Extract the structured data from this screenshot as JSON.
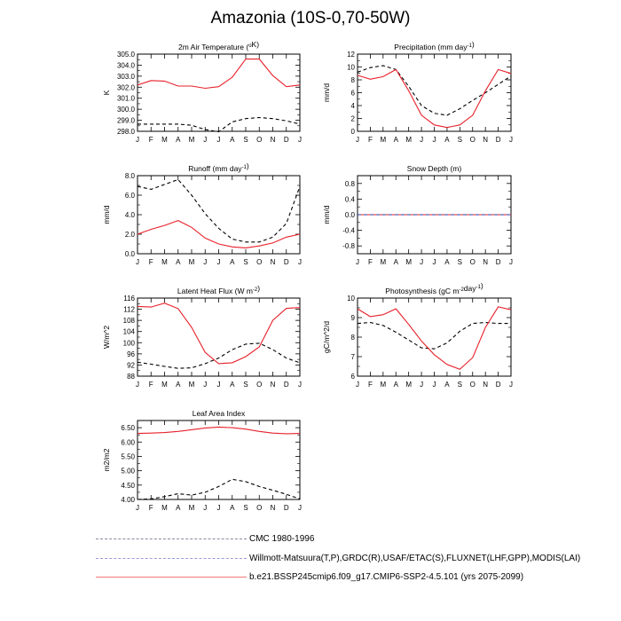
{
  "title": "Amazonia (10S-0,70-50W)",
  "months": [
    "J",
    "F",
    "M",
    "A",
    "M",
    "J",
    "J",
    "A",
    "S",
    "O",
    "N",
    "D",
    "J"
  ],
  "legend": [
    {
      "label": "CMC 1980-1996",
      "style": "dashed",
      "color": "#8a8aa0"
    },
    {
      "label": "Willmott-Matsuura(T,P),GRDC(R),USAF/ETAC(S),FLUXNET(LHF,GPP),MODIS(LAI)",
      "style": "dashed",
      "color": "#9a9ad6"
    },
    {
      "label": "b.e21.BSSP245cmip6.f09_g17.CMIP6-SSP2-4.5.101 (yrs 2075-2099)",
      "style": "solid",
      "color": "#f07878"
    }
  ],
  "chart_data": [
    {
      "type": "line",
      "title": "2m Air Temperature (°K)",
      "title_parts": [
        "2m Air Temperature (",
        "o",
        "K)"
      ],
      "ylabel": "K",
      "ylim": [
        298.0,
        305.0
      ],
      "yticks": [
        298.0,
        299.0,
        300.0,
        301.0,
        302.0,
        303.0,
        304.0,
        305.0
      ],
      "ytick_labels": [
        "298.0",
        "299.0",
        "300.0",
        "301.0",
        "302.0",
        "303.0",
        "304.0",
        "305.0"
      ],
      "obs": [
        298.65,
        298.65,
        298.65,
        298.65,
        298.55,
        298.15,
        297.95,
        298.85,
        299.15,
        299.25,
        299.15,
        298.95,
        298.65
      ],
      "model": [
        302.2,
        302.6,
        302.55,
        302.1,
        302.1,
        301.9,
        302.05,
        302.9,
        304.55,
        304.55,
        303.05,
        302.05,
        302.2
      ]
    },
    {
      "type": "line",
      "title": "Precipitation (mm day-1)",
      "title_parts": [
        "Precipitation (mm day",
        "-1",
        ")"
      ],
      "ylabel": "mm/d",
      "ylim": [
        0,
        12
      ],
      "yticks": [
        0,
        2,
        4,
        6,
        8,
        10,
        12
      ],
      "ytick_labels": [
        "0",
        "2",
        "4",
        "6",
        "8",
        "10",
        "12"
      ],
      "obs": [
        9.2,
        9.9,
        10.2,
        9.6,
        7.0,
        4.0,
        2.8,
        2.5,
        3.5,
        4.8,
        6.0,
        7.3,
        8.6
      ],
      "model": [
        8.7,
        8.1,
        8.5,
        9.6,
        6.3,
        2.5,
        1.0,
        0.6,
        1.0,
        2.5,
        6.3,
        9.6,
        9.0
      ]
    },
    {
      "type": "line",
      "title": "Runoff (mm day-1)",
      "title_parts": [
        "Runoff (mm day",
        "-1",
        ")"
      ],
      "ylabel": "mm/d",
      "ylim": [
        0,
        8
      ],
      "yticks": [
        0,
        2,
        4,
        6,
        8
      ],
      "ytick_labels": [
        "0.0",
        "2.0",
        "4.0",
        "6.0",
        "8.0"
      ],
      "obs": [
        6.9,
        6.6,
        7.1,
        7.6,
        6.0,
        4.1,
        2.6,
        1.5,
        1.2,
        1.2,
        1.7,
        3.1,
        6.9
      ],
      "model": [
        2.0,
        2.5,
        2.9,
        3.4,
        2.7,
        1.6,
        1.0,
        0.7,
        0.6,
        0.8,
        1.1,
        1.7,
        2.0
      ]
    },
    {
      "type": "line",
      "title": "Snow Depth (m)",
      "title_parts": [
        "Snow Depth (m)"
      ],
      "ylabel": "mm/d",
      "ylim": [
        -1.0,
        1.0
      ],
      "yticks": [
        -0.8,
        -0.4,
        0.0,
        0.4,
        0.8
      ],
      "ytick_labels": [
        "-0.8",
        "-0.4",
        "0.0",
        "0.4",
        "0.8"
      ],
      "obs": [
        0,
        0,
        0,
        0,
        0,
        0,
        0,
        0,
        0,
        0,
        0,
        0,
        0
      ],
      "model": [
        0,
        0,
        0,
        0,
        0,
        0,
        0,
        0,
        0,
        0,
        0,
        0,
        0
      ]
    },
    {
      "type": "line",
      "title": "Latent Heat Flux (W m-2)",
      "title_parts": [
        "Latent Heat Flux (W m",
        "-2",
        ")"
      ],
      "ylabel": "W/m^2",
      "ylim": [
        88,
        116
      ],
      "yticks": [
        88,
        92,
        96,
        100,
        104,
        108,
        112,
        116
      ],
      "ytick_labels": [
        "88",
        "92",
        "96",
        "100",
        "104",
        "108",
        "112",
        "116"
      ],
      "obs": [
        93.0,
        92.3,
        91.5,
        90.8,
        91.0,
        92.5,
        94.5,
        97.5,
        99.5,
        99.8,
        97.5,
        94.5,
        92.8
      ],
      "model": [
        113.0,
        112.8,
        114.2,
        112.2,
        105.5,
        96.5,
        92.5,
        92.8,
        95.0,
        98.5,
        108.0,
        112.3,
        112.6
      ]
    },
    {
      "type": "line",
      "title": "Photosynthesis (gC m-2day-1)",
      "title_parts": [
        "Photosynthesis (gC m",
        "-2",
        "day",
        "-1",
        ")"
      ],
      "ylabel": "gC/m^2/d",
      "ylim": [
        6,
        10
      ],
      "yticks": [
        6,
        7,
        8,
        9,
        10
      ],
      "ytick_labels": [
        "6",
        "7",
        "8",
        "9",
        "10"
      ],
      "obs": [
        8.7,
        8.75,
        8.6,
        8.25,
        7.85,
        7.45,
        7.4,
        7.7,
        8.3,
        8.7,
        8.75,
        8.7,
        8.7
      ],
      "model": [
        9.45,
        9.05,
        9.15,
        9.45,
        8.65,
        7.8,
        7.1,
        6.6,
        6.35,
        6.95,
        8.5,
        9.55,
        9.4
      ]
    },
    {
      "type": "line",
      "title": "Leaf Area Index",
      "title_parts": [
        "Leaf Area Index"
      ],
      "ylabel": "m2/m2",
      "ylim": [
        4.0,
        6.75
      ],
      "yticks": [
        4.0,
        4.5,
        5.0,
        5.5,
        6.0,
        6.5
      ],
      "ytick_labels": [
        "4.00",
        "4.50",
        "5.00",
        "5.50",
        "6.00",
        "6.50"
      ],
      "obs": [
        4.0,
        4.02,
        4.1,
        4.2,
        4.15,
        4.25,
        4.45,
        4.7,
        4.62,
        4.45,
        4.32,
        4.18,
        4.02
      ],
      "model": [
        6.3,
        6.31,
        6.33,
        6.37,
        6.43,
        6.49,
        6.52,
        6.5,
        6.45,
        6.37,
        6.31,
        6.29,
        6.3
      ]
    }
  ]
}
